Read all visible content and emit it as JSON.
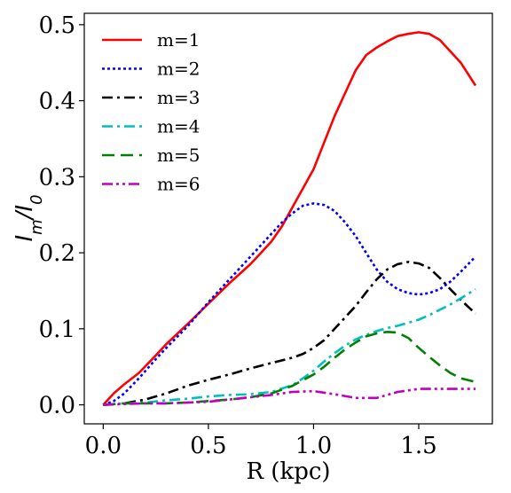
{
  "chart_data": {
    "type": "line",
    "xlabel": "R (kpc)",
    "ylabel_main": "I",
    "ylabel_sub1": "m",
    "ylabel_mid": "/I",
    "ylabel_sub2": "0",
    "xlim": [
      -0.09,
      1.85
    ],
    "ylim": [
      -0.025,
      0.515
    ],
    "xticks": [
      0.0,
      0.5,
      1.0,
      1.5
    ],
    "xtick_labels": [
      "0.0",
      "0.5",
      "1.0",
      "1.5"
    ],
    "yticks": [
      0.0,
      0.1,
      0.2,
      0.3,
      0.4,
      0.5
    ],
    "ytick_labels": [
      "0.0",
      "0.1",
      "0.2",
      "0.3",
      "0.4",
      "0.5"
    ],
    "grid": false,
    "legend_position": "top-left",
    "series": [
      {
        "name": "m=1",
        "color": "#ff0000",
        "dash": "solid",
        "x": [
          0.0,
          0.05,
          0.1,
          0.17,
          0.25,
          0.3,
          0.4,
          0.5,
          0.6,
          0.7,
          0.75,
          0.8,
          0.85,
          0.9,
          0.95,
          1.0,
          1.05,
          1.1,
          1.15,
          1.2,
          1.25,
          1.3,
          1.35,
          1.4,
          1.45,
          1.5,
          1.55,
          1.6,
          1.65,
          1.7,
          1.77
        ],
        "y": [
          0.0,
          0.015,
          0.027,
          0.042,
          0.065,
          0.08,
          0.106,
          0.133,
          0.16,
          0.185,
          0.2,
          0.215,
          0.235,
          0.26,
          0.285,
          0.31,
          0.345,
          0.38,
          0.41,
          0.44,
          0.46,
          0.47,
          0.478,
          0.485,
          0.488,
          0.49,
          0.488,
          0.48,
          0.465,
          0.45,
          0.42
        ]
      },
      {
        "name": "m=2",
        "color": "#0000ff",
        "dash": "dotted",
        "x": [
          0.0,
          0.05,
          0.1,
          0.17,
          0.25,
          0.3,
          0.4,
          0.5,
          0.6,
          0.7,
          0.75,
          0.8,
          0.85,
          0.9,
          0.95,
          1.0,
          1.05,
          1.1,
          1.15,
          1.2,
          1.25,
          1.3,
          1.35,
          1.4,
          1.45,
          1.5,
          1.55,
          1.6,
          1.65,
          1.7,
          1.77
        ],
        "y": [
          0.0,
          0.005,
          0.015,
          0.035,
          0.06,
          0.075,
          0.103,
          0.135,
          0.165,
          0.195,
          0.21,
          0.225,
          0.24,
          0.252,
          0.262,
          0.265,
          0.263,
          0.255,
          0.24,
          0.222,
          0.2,
          0.178,
          0.162,
          0.152,
          0.147,
          0.145,
          0.147,
          0.152,
          0.162,
          0.175,
          0.195
        ]
      },
      {
        "name": "m=3",
        "color": "#000000",
        "dash": "dashdot",
        "x": [
          0.0,
          0.1,
          0.2,
          0.3,
          0.4,
          0.5,
          0.6,
          0.7,
          0.8,
          0.9,
          0.95,
          1.0,
          1.05,
          1.1,
          1.15,
          1.2,
          1.25,
          1.3,
          1.35,
          1.4,
          1.45,
          1.5,
          1.55,
          1.6,
          1.65,
          1.7,
          1.77
        ],
        "y": [
          0.0,
          0.002,
          0.007,
          0.015,
          0.025,
          0.033,
          0.04,
          0.048,
          0.055,
          0.062,
          0.067,
          0.075,
          0.085,
          0.1,
          0.115,
          0.13,
          0.148,
          0.165,
          0.178,
          0.185,
          0.188,
          0.186,
          0.18,
          0.167,
          0.152,
          0.138,
          0.12
        ]
      },
      {
        "name": "m=4",
        "color": "#00bfbf",
        "dash": "dashdot",
        "x": [
          0.0,
          0.1,
          0.2,
          0.3,
          0.4,
          0.5,
          0.6,
          0.7,
          0.8,
          0.9,
          0.95,
          1.0,
          1.05,
          1.1,
          1.15,
          1.2,
          1.25,
          1.3,
          1.35,
          1.4,
          1.45,
          1.5,
          1.55,
          1.6,
          1.65,
          1.7,
          1.77
        ],
        "y": [
          0.0,
          0.002,
          0.003,
          0.006,
          0.008,
          0.011,
          0.013,
          0.014,
          0.017,
          0.026,
          0.035,
          0.045,
          0.057,
          0.068,
          0.078,
          0.086,
          0.092,
          0.097,
          0.101,
          0.104,
          0.108,
          0.112,
          0.118,
          0.125,
          0.132,
          0.14,
          0.152
        ]
      },
      {
        "name": "m=5",
        "color": "#008000",
        "dash": "dashed",
        "x": [
          0.0,
          0.1,
          0.2,
          0.3,
          0.4,
          0.5,
          0.6,
          0.7,
          0.8,
          0.9,
          1.0,
          1.05,
          1.1,
          1.15,
          1.2,
          1.25,
          1.3,
          1.35,
          1.4,
          1.45,
          1.5,
          1.55,
          1.6,
          1.65,
          1.7,
          1.77
        ],
        "y": [
          0.0,
          0.002,
          0.002,
          0.002,
          0.003,
          0.005,
          0.007,
          0.01,
          0.015,
          0.025,
          0.04,
          0.05,
          0.062,
          0.073,
          0.082,
          0.09,
          0.094,
          0.096,
          0.095,
          0.088,
          0.075,
          0.063,
          0.052,
          0.042,
          0.035,
          0.03
        ]
      },
      {
        "name": "m=6",
        "color": "#bf00bf",
        "dash": "dashdotdot",
        "x": [
          0.0,
          0.1,
          0.2,
          0.3,
          0.4,
          0.5,
          0.6,
          0.7,
          0.8,
          0.9,
          1.0,
          1.1,
          1.2,
          1.3,
          1.4,
          1.5,
          1.6,
          1.7,
          1.77
        ],
        "y": [
          0.0,
          0.001,
          0.002,
          0.002,
          0.003,
          0.004,
          0.007,
          0.01,
          0.013,
          0.017,
          0.018,
          0.014,
          0.009,
          0.009,
          0.017,
          0.021,
          0.021,
          0.021,
          0.021
        ]
      }
    ]
  }
}
